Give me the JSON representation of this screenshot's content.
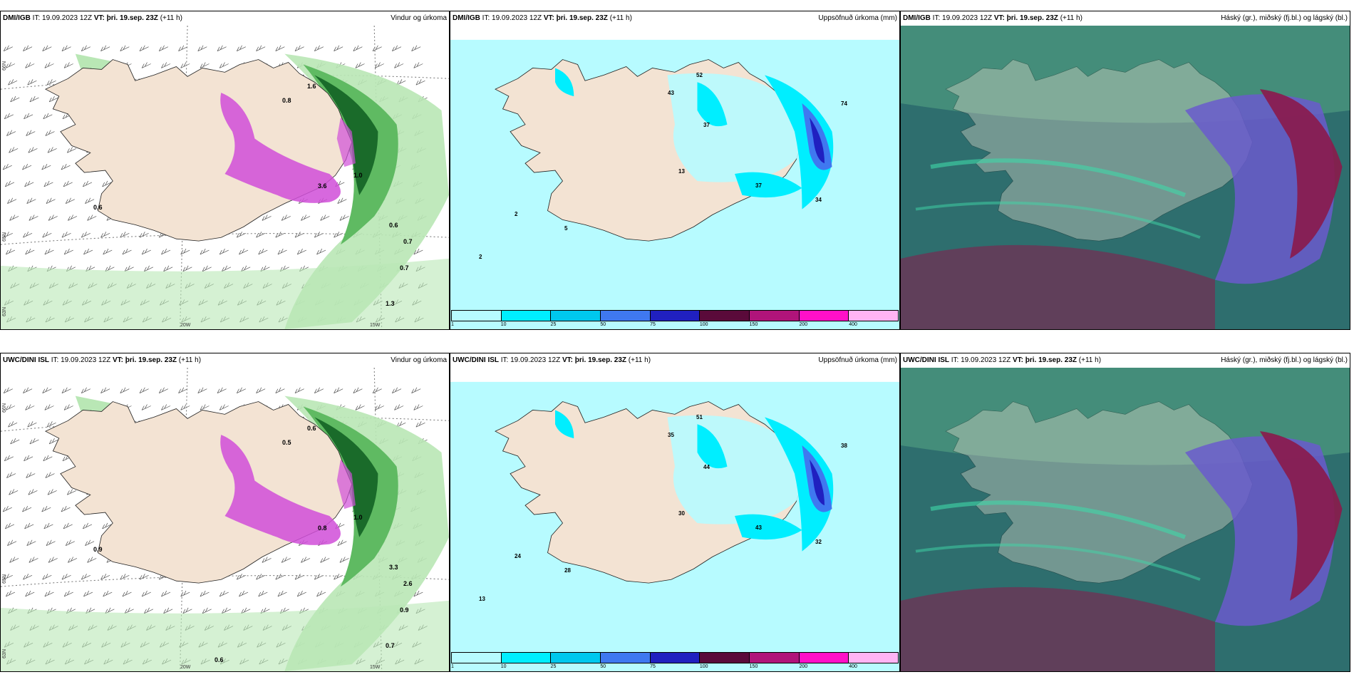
{
  "panels": [
    {
      "model": "DMI/IGB",
      "it": "IT: 19.09.2023 12Z",
      "vt": "VT: þri. 19.sep. 23Z",
      "lead": "(+11 h)",
      "title": "Vindur og úrkoma",
      "type": "wind",
      "lat_labels": [
        "66N",
        "65N",
        "63N"
      ],
      "lon_labels": [
        "20W",
        "15W"
      ],
      "values": [
        "0.6",
        "0.8",
        "1.0",
        "1.6",
        "3.6",
        "0.6",
        "0.7",
        "0.7",
        "1.3"
      ]
    },
    {
      "model": "DMI/IGB",
      "it": "IT: 19.09.2023 12Z",
      "vt": "VT: þri. 19.sep. 23Z",
      "lead": "(+11 h)",
      "title": "Uppsöfnuð úrkoma (mm)",
      "type": "precip",
      "values": [
        "43",
        "52",
        "37",
        "74",
        "13",
        "37",
        "34",
        "2",
        "2",
        "5"
      ]
    },
    {
      "model": "DMI/IGB",
      "it": "IT: 19.09.2023 12Z",
      "vt": "VT: þri. 19.sep. 23Z",
      "lead": "(+11 h)",
      "title": "Háský (gr.), miðský (fj.bl.) og lágský (bl.)",
      "type": "cloud"
    },
    {
      "model": "UWC/DINI ISL",
      "it": "IT: 19.09.2023 12Z",
      "vt": "VT: þri. 19.sep. 23Z",
      "lead": "(+11 h)",
      "title": "Vindur og úrkoma",
      "type": "wind",
      "lat_labels": [
        "66N",
        "65N",
        "63N"
      ],
      "lon_labels": [
        "20W",
        "15W"
      ],
      "values": [
        "0.9",
        "0.5",
        "1.0",
        "0.6",
        "0.8",
        "3.3",
        "2.6",
        "0.9",
        "0.7",
        "0.6"
      ]
    },
    {
      "model": "UWC/DINI ISL",
      "it": "IT: 19.09.2023 12Z",
      "vt": "VT: þri. 19.sep. 23Z",
      "lead": "(+11 h)",
      "title": "Uppsöfnuð úrkoma (mm)",
      "type": "precip",
      "values": [
        "35",
        "51",
        "44",
        "38",
        "30",
        "43",
        "32",
        "24",
        "13",
        "28"
      ]
    },
    {
      "model": "UWC/DINI ISL",
      "it": "IT: 19.09.2023 12Z",
      "vt": "VT: þri. 19.sep. 23Z",
      "lead": "(+11 h)",
      "title": "Háský (gr.), miðský (fj.bl.) og lágský (bl.)",
      "type": "cloud"
    }
  ],
  "legend": {
    "labels": [
      "1",
      "10",
      "25",
      "50",
      "75",
      "100",
      "150",
      "200",
      "400"
    ],
    "colors": [
      "#b7fbff",
      "#00eeff",
      "#00c8ee",
      "#3f78f0",
      "#2020c0",
      "#5a0a3a",
      "#b0147a",
      "#ff10c8",
      "#ffb4f4"
    ]
  },
  "colors": {
    "land": "#f3e3d3",
    "sea_wind": "#ffffff",
    "light_green": "#b9e7b5",
    "mid_green": "#5fba62",
    "dark_green": "#1a6b2a",
    "magenta": "#d04ed8",
    "light_cyan": "#b7fbff",
    "cyan": "#00eeff",
    "cloud_teal": "#2e6e6e",
    "cloud_green": "#4f9a7f",
    "cloud_purple": "#6a5acd",
    "cloud_maroon": "#8b1a4a"
  }
}
